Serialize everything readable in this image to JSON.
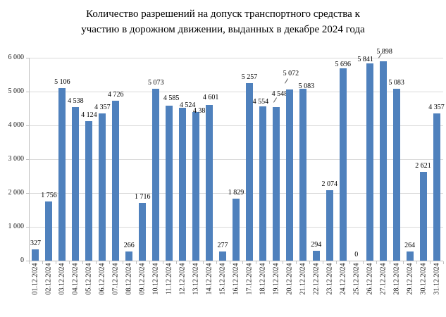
{
  "chart_data": {
    "type": "bar",
    "title": "Количество разрешений на допуск транспортного средства к участию в дорожном движении, выданных в декабре 2024 года",
    "title_lines": [
      "Количество разрешений на допуск транспортного средства к",
      "участию в дорожном движении, выданных в декабре 2024 года"
    ],
    "categories": [
      "01.12.2024",
      "02.12.2024",
      "03.12.2024",
      "04.12.2024",
      "05.12.2024",
      "06.12.2024",
      "07.12.2024",
      "08.12.2024",
      "09.12.2024",
      "10.12.2024",
      "11.12.2024",
      "12.12.2024",
      "13.12.2024",
      "14.12.2024",
      "15.12.2024",
      "16.12.2024",
      "17.12.2024",
      "18.12.2024",
      "19.12.2024",
      "20.12.2024",
      "21.12.2024",
      "22.12.2024",
      "23.12.2024",
      "24.12.2024",
      "25.12.2024",
      "26.12.2024",
      "27.12.2024",
      "28.12.2024",
      "29.12.2024",
      "30.12.2024",
      "31.12.2024"
    ],
    "values": [
      327,
      1756,
      5106,
      4538,
      4124,
      4357,
      4726,
      266,
      1716,
      5073,
      4585,
      4524,
      4387,
      4601,
      277,
      1829,
      5257,
      4554,
      4548,
      5072,
      5083,
      294,
      2074,
      5696,
      0,
      5841,
      5898,
      5083,
      264,
      2621,
      4357
    ],
    "xlabel": "",
    "ylabel": "",
    "ylim": [
      0,
      6000
    ],
    "y_step": 1000,
    "y_tick_labels": [
      "0",
      "1 000",
      "2 000",
      "3 000",
      "4 000",
      "5 000",
      "6 000"
    ],
    "grid": true,
    "legend_position": "none",
    "data_labels_visible": true,
    "bar_color": "#4f81bd",
    "gridline_color": "#d9d9d9",
    "axis_color": "#bfbfbf",
    "text_color": "#000000"
  }
}
